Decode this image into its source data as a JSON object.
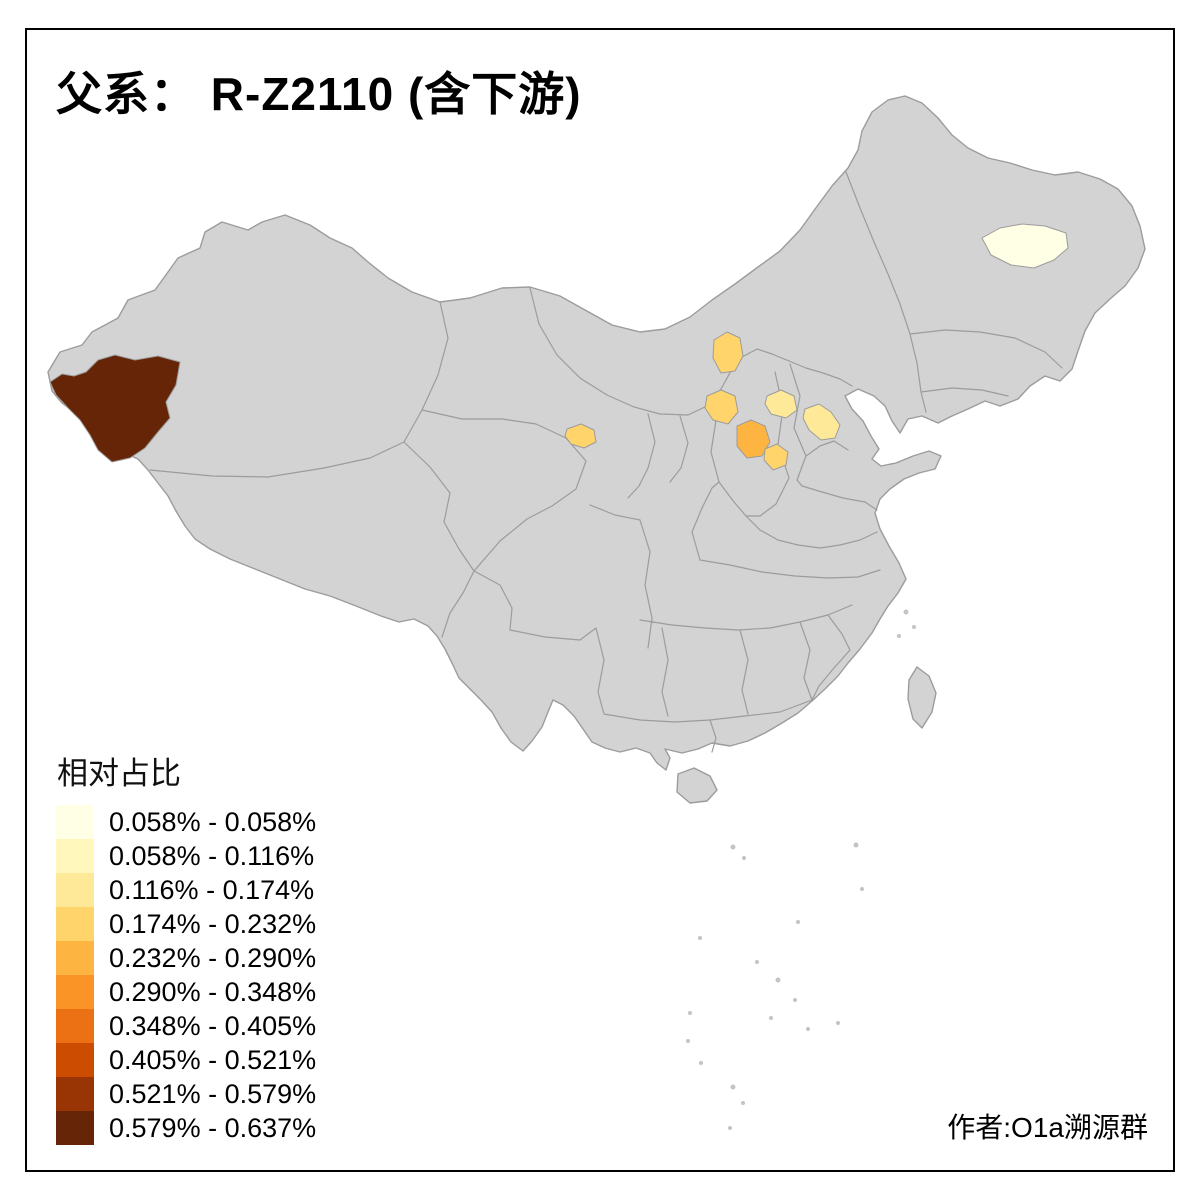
{
  "title": "父系： R-Z2110 (含下游)",
  "attribution": "作者:O1a溯源群",
  "legend": {
    "title": "相对占比",
    "items": [
      {
        "label": "0.058% - 0.058%",
        "color": "#FFFFE5"
      },
      {
        "label": "0.058% - 0.116%",
        "color": "#FFF7BC"
      },
      {
        "label": "0.116% - 0.174%",
        "color": "#FEE999"
      },
      {
        "label": "0.174% - 0.232%",
        "color": "#FED46B"
      },
      {
        "label": "0.232% - 0.290%",
        "color": "#FEB441"
      },
      {
        "label": "0.290% - 0.348%",
        "color": "#FB9427"
      },
      {
        "label": "0.348% - 0.405%",
        "color": "#EC7014"
      },
      {
        "label": "0.405% - 0.521%",
        "color": "#CC4C02"
      },
      {
        "label": "0.521% - 0.579%",
        "color": "#993404"
      },
      {
        "label": "0.579% - 0.637%",
        "color": "#662506"
      }
    ]
  },
  "map": {
    "background": "#FFFFFF",
    "base_fill": "#D3D3D3",
    "border_color": "#9C9C9C",
    "frame_color": "#000000",
    "highlighted_regions": [
      {
        "id": "southwest-xinjiang",
        "range": "0.579% - 0.637%",
        "color": "#662506"
      },
      {
        "id": "central-heilongjiang",
        "range": "0.058% - 0.058%",
        "color": "#FFFFE5"
      },
      {
        "id": "north-shanxi-border",
        "range": "0.174% - 0.232%",
        "color": "#FED46B"
      },
      {
        "id": "northwest-shanxi",
        "range": "0.174% - 0.232%",
        "color": "#FED46B"
      },
      {
        "id": "central-hebei",
        "range": "0.116% - 0.174%",
        "color": "#FEE999"
      },
      {
        "id": "central-shanxi",
        "range": "0.232% - 0.290%",
        "color": "#FEB441"
      },
      {
        "id": "southeast-shanxi",
        "range": "0.174% - 0.232%",
        "color": "#FED46B"
      },
      {
        "id": "northwest-shandong",
        "range": "0.116% - 0.174%",
        "color": "#FEE999"
      },
      {
        "id": "central-gansu",
        "range": "0.174% - 0.232%",
        "color": "#FED46B"
      }
    ]
  }
}
